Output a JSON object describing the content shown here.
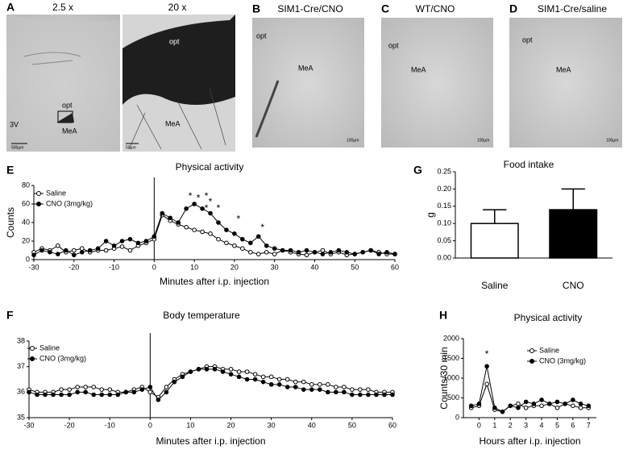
{
  "panels": {
    "A": {
      "label": "A",
      "left_title": "2.5 x",
      "right_title": "20 x",
      "left_labels": [
        "opt",
        "MeA",
        "3V"
      ],
      "right_labels": [
        "opt",
        "MeA"
      ],
      "left_scale": "500µm",
      "right_scale": "50µm"
    },
    "B": {
      "label": "B",
      "title": "SIM1-Cre/CNO",
      "labels": [
        "opt",
        "MeA"
      ],
      "scale": "100µm"
    },
    "C": {
      "label": "C",
      "title": "WT/CNO",
      "labels": [
        "opt",
        "MeA"
      ],
      "scale": "100µm"
    },
    "D": {
      "label": "D",
      "title": "SIM1-Cre/saline",
      "labels": [
        "opt",
        "MeA"
      ],
      "scale": "100µm"
    }
  },
  "chart_data": [
    {
      "type": "line",
      "panel_label": "E",
      "title": "Physical activity",
      "x_label": "Minutes after i.p. injection",
      "y_label": "Counts",
      "x": [
        -30,
        -28,
        -26,
        -24,
        -22,
        -20,
        -18,
        -16,
        -14,
        -12,
        -10,
        -8,
        -6,
        -4,
        -2,
        0,
        2,
        4,
        6,
        8,
        10,
        12,
        14,
        16,
        18,
        20,
        22,
        24,
        26,
        28,
        30,
        32,
        34,
        36,
        38,
        40,
        42,
        44,
        46,
        48,
        50,
        52,
        54,
        56,
        58,
        60
      ],
      "series": [
        {
          "name": "Saline",
          "color": "#ffffff",
          "values": [
            8,
            12,
            10,
            15,
            8,
            10,
            12,
            8,
            10,
            10,
            12,
            14,
            10,
            15,
            18,
            22,
            48,
            42,
            38,
            35,
            32,
            30,
            28,
            22,
            18,
            15,
            12,
            8,
            6,
            8,
            6,
            10,
            8,
            6,
            5,
            8,
            10,
            6,
            8,
            5,
            6,
            8,
            10,
            8,
            6,
            6
          ]
        },
        {
          "name": "CNO (3mg/kg)",
          "color": "#000000",
          "values": [
            5,
            10,
            8,
            6,
            10,
            5,
            8,
            10,
            12,
            20,
            15,
            20,
            22,
            18,
            20,
            25,
            50,
            45,
            40,
            55,
            60,
            55,
            50,
            40,
            32,
            28,
            22,
            18,
            25,
            15,
            12,
            10,
            10,
            8,
            10,
            8,
            6,
            8,
            10,
            8,
            6,
            8,
            10,
            6,
            8,
            6
          ]
        }
      ],
      "annotations": [
        {
          "text": "*",
          "x": 9,
          "y": 68
        },
        {
          "text": "*",
          "x": 11,
          "y": 66
        },
        {
          "text": "*",
          "x": 13,
          "y": 68
        },
        {
          "text": "*",
          "x": 14,
          "y": 62
        },
        {
          "text": "*",
          "x": 13,
          "y": 55
        },
        {
          "text": "*",
          "x": 16,
          "y": 55
        },
        {
          "text": "*",
          "x": 21,
          "y": 43
        },
        {
          "text": "*",
          "x": 27,
          "y": 34
        }
      ],
      "xlim": [
        -30,
        60
      ],
      "xticks": [
        -30,
        -20,
        -10,
        0,
        10,
        20,
        30,
        40,
        50,
        60
      ],
      "ylim": [
        0,
        80
      ],
      "yticks": [
        0,
        20,
        40,
        60,
        80
      ]
    },
    {
      "type": "line",
      "panel_label": "F",
      "title": "Body temperature",
      "x_label": "Minutes after i.p. injection",
      "x": [
        -30,
        -28,
        -26,
        -24,
        -22,
        -20,
        -18,
        -16,
        -14,
        -12,
        -10,
        -8,
        -6,
        -4,
        -2,
        0,
        2,
        4,
        6,
        8,
        10,
        12,
        14,
        16,
        18,
        20,
        22,
        24,
        26,
        28,
        30,
        32,
        34,
        36,
        38,
        40,
        42,
        44,
        46,
        48,
        50,
        52,
        54,
        56,
        58,
        60
      ],
      "series": [
        {
          "name": "Saline",
          "color": "#ffffff",
          "values": [
            36.1,
            36.0,
            36.0,
            36.0,
            36.1,
            36.1,
            36.2,
            36.2,
            36.2,
            36.1,
            36.1,
            36.0,
            36.0,
            36.1,
            36.2,
            36.0,
            35.8,
            36.2,
            36.5,
            36.7,
            36.8,
            36.9,
            37.0,
            37.0,
            36.9,
            36.9,
            36.8,
            36.8,
            36.7,
            36.6,
            36.6,
            36.5,
            36.5,
            36.4,
            36.4,
            36.3,
            36.3,
            36.3,
            36.2,
            36.2,
            36.1,
            36.1,
            36.1,
            36.0,
            36.0,
            36.0
          ]
        },
        {
          "name": "CNO (3mg/kg)",
          "color": "#000000",
          "values": [
            36.0,
            35.9,
            35.9,
            35.9,
            35.9,
            35.9,
            36.0,
            36.0,
            35.9,
            35.9,
            35.9,
            35.9,
            36.0,
            36.0,
            36.1,
            36.2,
            35.7,
            36.0,
            36.4,
            36.6,
            36.8,
            36.9,
            36.9,
            36.9,
            36.8,
            36.7,
            36.6,
            36.5,
            36.5,
            36.4,
            36.3,
            36.3,
            36.2,
            36.2,
            36.1,
            36.1,
            36.1,
            36.0,
            36.0,
            36.0,
            35.9,
            35.9,
            35.9,
            35.9,
            35.9,
            35.9
          ]
        }
      ],
      "xlim": [
        -30,
        60
      ],
      "xticks": [
        -30,
        -20,
        -10,
        0,
        10,
        20,
        30,
        40,
        50,
        60
      ],
      "ylim": [
        35,
        38
      ],
      "yticks": [
        35,
        36,
        37,
        38
      ]
    },
    {
      "type": "bar",
      "panel_label": "G",
      "title": "Food intake",
      "y_label": "g",
      "categories": [
        "Saline",
        "CNO"
      ],
      "values": [
        0.1,
        0.14
      ],
      "errors": [
        0.04,
        0.06
      ],
      "colors": [
        "#ffffff",
        "#000000"
      ],
      "ylim": [
        0,
        0.25
      ],
      "yticks": [
        {
          "value": 0,
          "label": "0.00"
        },
        0.05,
        {
          "value": 0.1,
          "label": "0.10"
        },
        0.15,
        {
          "value": 0.2,
          "label": "0.20"
        },
        0.25
      ]
    },
    {
      "type": "line",
      "panel_label": "H",
      "title": "Physical activity",
      "x_label": "Hours after i.p. injection",
      "y_label": "Counts/30 min",
      "x": [
        -0.5,
        0,
        0.5,
        1,
        1.5,
        2,
        2.5,
        3,
        3.5,
        4,
        4.5,
        5,
        5.5,
        6,
        6.5,
        7
      ],
      "series": [
        {
          "name": "Saline",
          "color": "#ffffff",
          "values": [
            250,
            300,
            850,
            200,
            150,
            300,
            350,
            250,
            300,
            300,
            350,
            250,
            350,
            300,
            250,
            250
          ]
        },
        {
          "name": "CNO (3mg/kg)",
          "color": "#000000",
          "values": [
            300,
            350,
            1300,
            250,
            150,
            300,
            250,
            400,
            350,
            450,
            350,
            400,
            350,
            450,
            350,
            300
          ]
        }
      ],
      "annotations": [
        {
          "text": "*",
          "x": 0.5,
          "y": 1600
        }
      ],
      "xlim": [
        -1,
        7.5
      ],
      "xticks": [
        0,
        1,
        2,
        3,
        4,
        5,
        6,
        7
      ],
      "ylim": [
        0,
        2000
      ],
      "yticks": [
        0,
        500,
        1000,
        1500,
        2000
      ]
    }
  ]
}
